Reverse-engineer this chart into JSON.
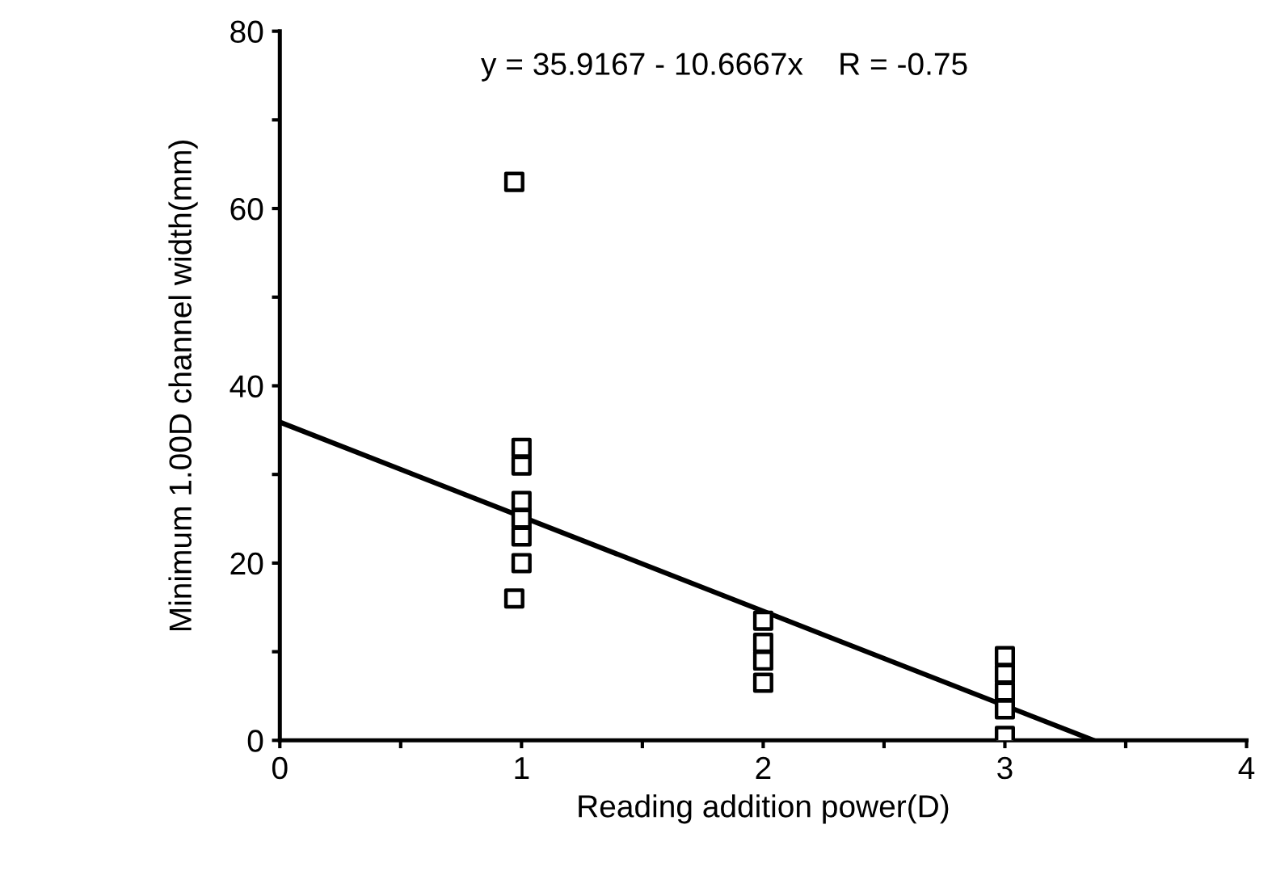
{
  "chart_data": {
    "type": "scatter",
    "xlabel": "Reading addition power(D)",
    "ylabel": "Minimum 1.00D channel width(mm)",
    "annotations": [
      "y = 35.9167 - 10.6667x    R = -0.75"
    ],
    "xlim": [
      0,
      4
    ],
    "ylim": [
      0,
      80
    ],
    "xticks": [
      0,
      {
        "value": 0.5,
        "label": null
      },
      1,
      {
        "value": 1.5,
        "label": null
      },
      2,
      {
        "value": 2.5,
        "label": null
      },
      3,
      {
        "value": 3.5,
        "label": null
      },
      4
    ],
    "yticks": [
      0,
      {
        "value": 10,
        "label": null
      },
      20,
      {
        "value": 30,
        "label": null
      },
      40,
      {
        "value": 50,
        "label": null
      },
      60,
      {
        "value": 70,
        "label": null
      },
      80
    ],
    "grid": false,
    "legend": false,
    "series": [
      {
        "marker": "square",
        "color": "#000000",
        "x": [
          0.97,
          1,
          1,
          1,
          1,
          1,
          1,
          0.97,
          2,
          2,
          2,
          2,
          3,
          3,
          3,
          3,
          3
        ],
        "values": [
          63,
          33,
          31,
          27,
          25,
          23,
          20,
          16,
          13.5,
          11,
          9,
          6.5,
          9.5,
          7.5,
          5.5,
          3.5,
          0.5
        ]
      },
      {
        "type": "line",
        "marker": "none",
        "line_style": "solid",
        "color": "#000000",
        "x": [
          0,
          3.367
        ],
        "values": [
          35.9,
          0
        ]
      }
    ]
  }
}
